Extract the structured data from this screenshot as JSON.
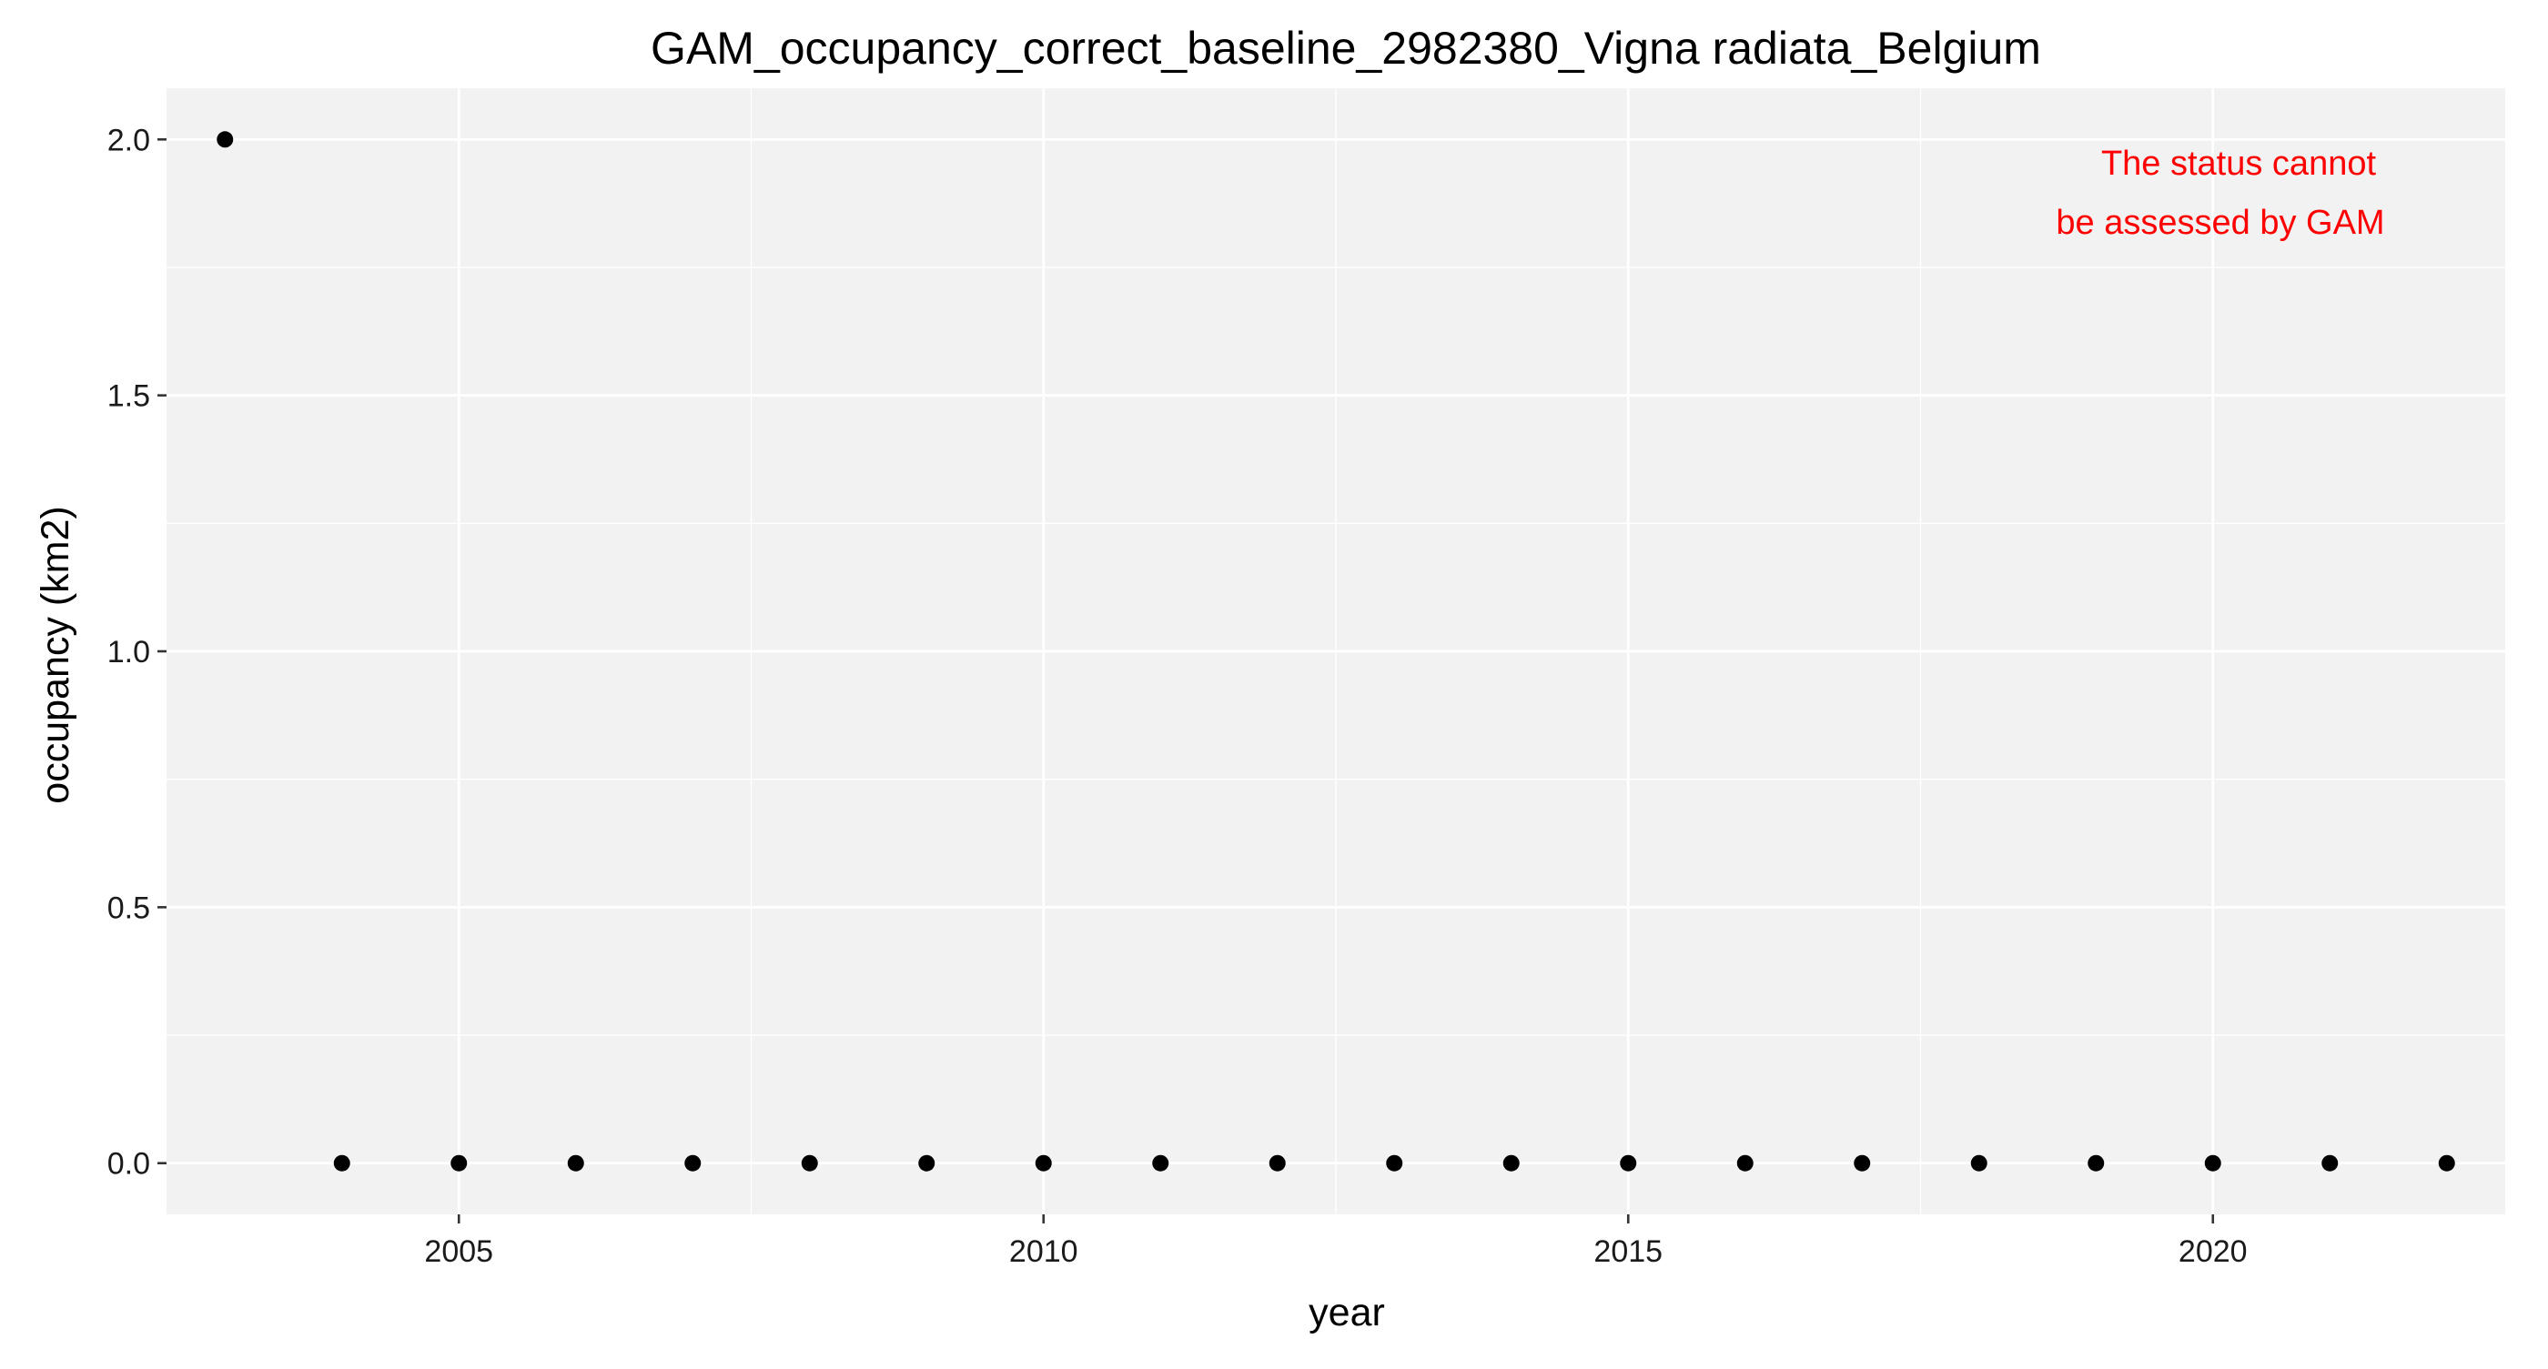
{
  "chart_data": {
    "type": "scatter",
    "title": "GAM_occupancy_correct_baseline_2982380_Vigna radiata_Belgium",
    "xlabel": "year",
    "ylabel": "occupancy (km2)",
    "xlim": [
      2002.5,
      2022.5
    ],
    "ylim": [
      -0.1,
      2.1
    ],
    "x_ticks": [
      2005,
      2010,
      2015,
      2020
    ],
    "y_ticks": [
      0.0,
      0.5,
      1.0,
      1.5,
      2.0
    ],
    "x_tick_labels": [
      "2005",
      "2010",
      "2015",
      "2020"
    ],
    "y_tick_labels": [
      "0.0",
      "0.5",
      "1.0",
      "1.5",
      "2.0"
    ],
    "grid": true,
    "series": [
      {
        "x": [
          2003,
          2004,
          2005,
          2006,
          2007,
          2008,
          2009,
          2010,
          2011,
          2012,
          2013,
          2014,
          2015,
          2016,
          2017,
          2018,
          2019,
          2020,
          2021,
          2022
        ],
        "y": [
          2,
          0,
          0,
          0,
          0,
          0,
          0,
          0,
          0,
          0,
          0,
          0,
          0,
          0,
          0,
          0,
          0,
          0,
          0,
          0
        ],
        "color": "#000000"
      }
    ],
    "annotation": {
      "lines": [
        "The status cannot",
        "be assessed by GAM"
      ],
      "color": "#ff0000",
      "position": "top-right"
    },
    "panel_background": "#f2f2f2",
    "grid_color": "#ffffff"
  }
}
